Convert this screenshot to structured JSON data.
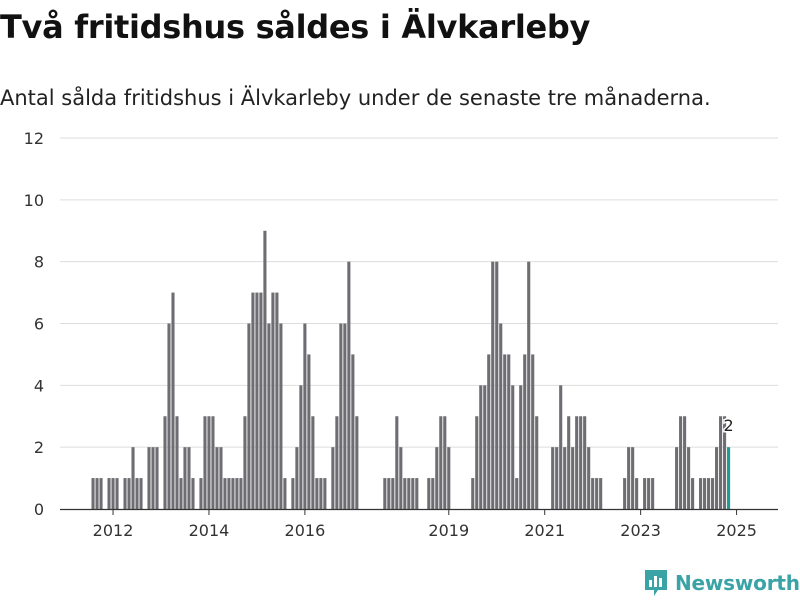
{
  "title": "Två fritidshus såldes i Älvkarleby",
  "subtitle": "Antal sålda fritidshus i Älvkarleby under de senaste tre månaderna.",
  "brand": {
    "name": "Newsworthy",
    "icon": "bar-chart-icon"
  },
  "colors": {
    "bar": "#6e6d72",
    "highlight": "#1a9d96",
    "grid": "#dddddd",
    "axis": "#333333",
    "brand": "#3aa3a6"
  },
  "chart_data": {
    "type": "bar",
    "title": "Två fritidshus såldes i Älvkarleby",
    "xlabel": "",
    "ylabel": "",
    "ylim": [
      0,
      12
    ],
    "yticks": [
      0,
      2,
      4,
      6,
      8,
      10,
      12
    ],
    "xticks": [
      {
        "label": "2012",
        "index": 5
      },
      {
        "label": "2014",
        "index": 29
      },
      {
        "label": "2016",
        "index": 53
      },
      {
        "label": "2019",
        "index": 89
      },
      {
        "label": "2021",
        "index": 113
      },
      {
        "label": "2023",
        "index": 137
      },
      {
        "label": "2025",
        "index": 161
      }
    ],
    "start": "2011-08",
    "values": [
      1,
      1,
      1,
      0,
      1,
      1,
      1,
      0,
      1,
      1,
      2,
      1,
      1,
      0,
      2,
      2,
      2,
      0,
      3,
      6,
      7,
      3,
      1,
      2,
      2,
      1,
      0,
      1,
      3,
      3,
      3,
      2,
      2,
      1,
      1,
      1,
      1,
      1,
      3,
      6,
      7,
      7,
      7,
      9,
      6,
      7,
      7,
      6,
      1,
      0,
      1,
      2,
      4,
      6,
      5,
      3,
      1,
      1,
      1,
      0,
      2,
      3,
      6,
      6,
      8,
      5,
      3,
      0,
      0,
      0,
      0,
      0,
      0,
      1,
      1,
      1,
      3,
      2,
      1,
      1,
      1,
      1,
      0,
      0,
      1,
      1,
      2,
      3,
      3,
      2,
      0,
      0,
      0,
      0,
      0,
      1,
      3,
      4,
      4,
      5,
      8,
      8,
      6,
      5,
      5,
      4,
      1,
      4,
      5,
      8,
      5,
      3,
      0,
      0,
      0,
      2,
      2,
      4,
      2,
      3,
      2,
      3,
      3,
      3,
      2,
      1,
      1,
      1,
      0,
      0,
      0,
      0,
      0,
      1,
      2,
      2,
      1,
      0,
      1,
      1,
      1,
      0,
      0,
      0,
      0,
      0,
      2,
      3,
      3,
      2,
      1,
      0,
      1,
      1,
      1,
      1,
      2,
      3,
      3,
      2
    ],
    "highlight_last": true,
    "last_label": "2"
  }
}
